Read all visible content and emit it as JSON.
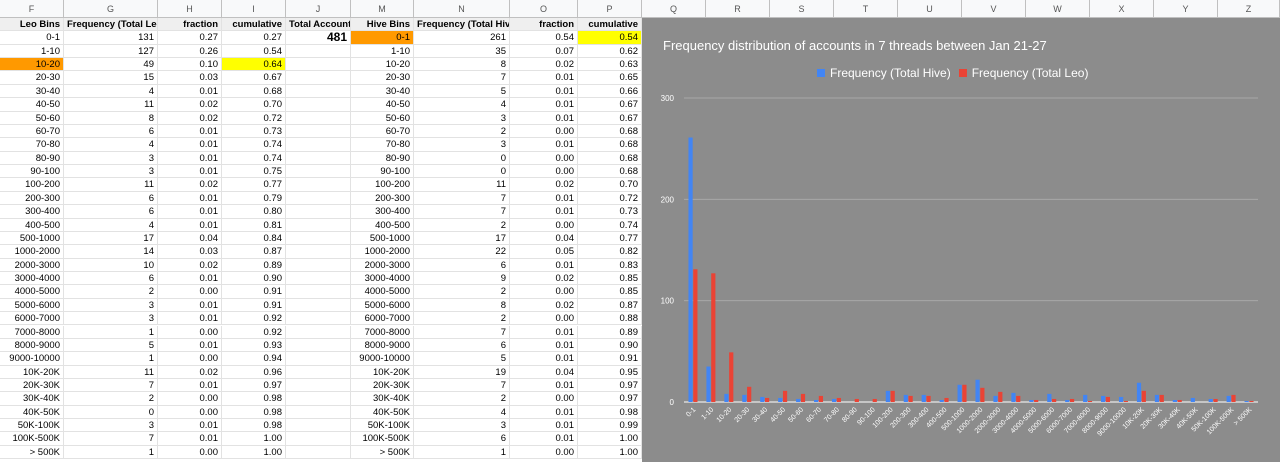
{
  "column_headers": [
    "F",
    "G",
    "H",
    "I",
    "J",
    "M",
    "N",
    "O",
    "P",
    "Q",
    "R",
    "S",
    "T",
    "U",
    "V",
    "W",
    "X",
    "Y",
    "Z"
  ],
  "leo_table": {
    "headers": [
      "Leo Bins",
      "Frequency (Total Leo)",
      "fraction",
      "cumulative"
    ],
    "rows": [
      [
        "0-1",
        "131",
        "0.27",
        "0.27"
      ],
      [
        "1-10",
        "127",
        "0.26",
        "0.54"
      ],
      [
        "10-20",
        "49",
        "0.10",
        "0.64"
      ],
      [
        "20-30",
        "15",
        "0.03",
        "0.67"
      ],
      [
        "30-40",
        "4",
        "0.01",
        "0.68"
      ],
      [
        "40-50",
        "11",
        "0.02",
        "0.70"
      ],
      [
        "50-60",
        "8",
        "0.02",
        "0.72"
      ],
      [
        "60-70",
        "6",
        "0.01",
        "0.73"
      ],
      [
        "70-80",
        "4",
        "0.01",
        "0.74"
      ],
      [
        "80-90",
        "3",
        "0.01",
        "0.74"
      ],
      [
        "90-100",
        "3",
        "0.01",
        "0.75"
      ],
      [
        "100-200",
        "11",
        "0.02",
        "0.77"
      ],
      [
        "200-300",
        "6",
        "0.01",
        "0.79"
      ],
      [
        "300-400",
        "6",
        "0.01",
        "0.80"
      ],
      [
        "400-500",
        "4",
        "0.01",
        "0.81"
      ],
      [
        "500-1000",
        "17",
        "0.04",
        "0.84"
      ],
      [
        "1000-2000",
        "14",
        "0.03",
        "0.87"
      ],
      [
        "2000-3000",
        "10",
        "0.02",
        "0.89"
      ],
      [
        "3000-4000",
        "6",
        "0.01",
        "0.90"
      ],
      [
        "4000-5000",
        "2",
        "0.00",
        "0.91"
      ],
      [
        "5000-6000",
        "3",
        "0.01",
        "0.91"
      ],
      [
        "6000-7000",
        "3",
        "0.01",
        "0.92"
      ],
      [
        "7000-8000",
        "1",
        "0.00",
        "0.92"
      ],
      [
        "8000-9000",
        "5",
        "0.01",
        "0.93"
      ],
      [
        "9000-10000",
        "1",
        "0.00",
        "0.94"
      ],
      [
        "10K-20K",
        "11",
        "0.02",
        "0.96"
      ],
      [
        "20K-30K",
        "7",
        "0.01",
        "0.97"
      ],
      [
        "30K-40K",
        "2",
        "0.00",
        "0.98"
      ],
      [
        "40K-50K",
        "0",
        "0.00",
        "0.98"
      ],
      [
        "50K-100K",
        "3",
        "0.01",
        "0.98"
      ],
      [
        "100K-500K",
        "7",
        "0.01",
        "1.00"
      ],
      [
        "> 500K",
        "1",
        "0.00",
        "1.00"
      ]
    ]
  },
  "total_account": {
    "label": "Total Account",
    "value": "481"
  },
  "hive_table": {
    "headers": [
      "Hive Bins",
      "Frequency (Total Hive)",
      "fraction",
      "cumulative"
    ],
    "rows": [
      [
        "0-1",
        "261",
        "0.54",
        "0.54"
      ],
      [
        "1-10",
        "35",
        "0.07",
        "0.62"
      ],
      [
        "10-20",
        "8",
        "0.02",
        "0.63"
      ],
      [
        "20-30",
        "7",
        "0.01",
        "0.65"
      ],
      [
        "30-40",
        "5",
        "0.01",
        "0.66"
      ],
      [
        "40-50",
        "4",
        "0.01",
        "0.67"
      ],
      [
        "50-60",
        "3",
        "0.01",
        "0.67"
      ],
      [
        "60-70",
        "2",
        "0.00",
        "0.68"
      ],
      [
        "70-80",
        "3",
        "0.01",
        "0.68"
      ],
      [
        "80-90",
        "0",
        "0.00",
        "0.68"
      ],
      [
        "90-100",
        "0",
        "0.00",
        "0.68"
      ],
      [
        "100-200",
        "11",
        "0.02",
        "0.70"
      ],
      [
        "200-300",
        "7",
        "0.01",
        "0.72"
      ],
      [
        "300-400",
        "7",
        "0.01",
        "0.73"
      ],
      [
        "400-500",
        "2",
        "0.00",
        "0.74"
      ],
      [
        "500-1000",
        "17",
        "0.04",
        "0.77"
      ],
      [
        "1000-2000",
        "22",
        "0.05",
        "0.82"
      ],
      [
        "2000-3000",
        "6",
        "0.01",
        "0.83"
      ],
      [
        "3000-4000",
        "9",
        "0.02",
        "0.85"
      ],
      [
        "4000-5000",
        "2",
        "0.00",
        "0.85"
      ],
      [
        "5000-6000",
        "8",
        "0.02",
        "0.87"
      ],
      [
        "6000-7000",
        "2",
        "0.00",
        "0.88"
      ],
      [
        "7000-8000",
        "7",
        "0.01",
        "0.89"
      ],
      [
        "8000-9000",
        "6",
        "0.01",
        "0.90"
      ],
      [
        "9000-10000",
        "5",
        "0.01",
        "0.91"
      ],
      [
        "10K-20K",
        "19",
        "0.04",
        "0.95"
      ],
      [
        "20K-30K",
        "7",
        "0.01",
        "0.97"
      ],
      [
        "30K-40K",
        "2",
        "0.00",
        "0.97"
      ],
      [
        "40K-50K",
        "4",
        "0.01",
        "0.98"
      ],
      [
        "50K-100K",
        "3",
        "0.01",
        "0.99"
      ],
      [
        "100K-500K",
        "6",
        "0.01",
        "1.00"
      ],
      [
        "> 500K",
        "1",
        "0.00",
        "1.00"
      ]
    ]
  },
  "highlights": {
    "orange": "#ff9900",
    "yellow": "#ffff00"
  },
  "chart_data": {
    "type": "bar",
    "title": "Frequency distribution of accounts in 7 threads between Jan 21-27",
    "xlabel": "",
    "ylabel": "",
    "ylim": [
      0,
      300
    ],
    "yticks": [
      "0",
      "100",
      "200",
      "300"
    ],
    "grid": true,
    "legend_position": "top",
    "background": "#8c8c8c",
    "categories": [
      "0-1",
      "1-10",
      "10-20",
      "20-30",
      "30-40",
      "40-50",
      "50-60",
      "60-70",
      "70-80",
      "80-90",
      "90-100",
      "100-200",
      "200-300",
      "300-400",
      "400-500",
      "500-1000",
      "1000-2000",
      "2000-3000",
      "3000-4000",
      "4000-5000",
      "5000-6000",
      "6000-7000",
      "7000-8000",
      "8000-9000",
      "9000-10000",
      "10K-20K",
      "20K-30K",
      "30K-40K",
      "40K-50K",
      "50K-100K",
      "100K-500K",
      "> 500K"
    ],
    "series": [
      {
        "name": "Frequency (Total Hive)",
        "color": "#4285f4",
        "values": [
          261,
          35,
          8,
          7,
          5,
          4,
          3,
          2,
          3,
          0,
          0,
          11,
          7,
          7,
          2,
          17,
          22,
          6,
          9,
          2,
          8,
          2,
          7,
          6,
          5,
          19,
          7,
          2,
          4,
          3,
          6,
          1
        ]
      },
      {
        "name": "Frequency (Total Leo)",
        "color": "#ea4335",
        "values": [
          131,
          127,
          49,
          15,
          4,
          11,
          8,
          6,
          4,
          3,
          3,
          11,
          6,
          6,
          4,
          17,
          14,
          10,
          6,
          2,
          3,
          3,
          1,
          5,
          1,
          11,
          7,
          2,
          0,
          3,
          7,
          1
        ]
      }
    ]
  }
}
